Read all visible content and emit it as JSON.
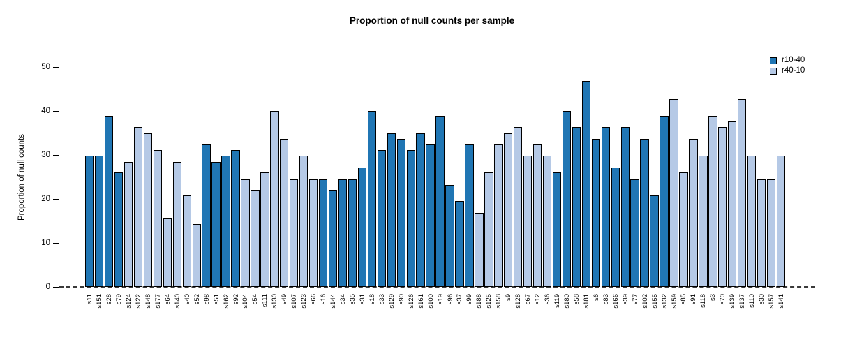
{
  "title": "Proportion of null counts per sample",
  "y_axis_label": "Proportion of null counts",
  "legend": {
    "position": "top-right",
    "items": [
      {
        "label": "r10-40",
        "color": "#2076b4"
      },
      {
        "label": "r40-10",
        "color": "#b5c9e6"
      }
    ]
  },
  "chart_data": {
    "type": "bar",
    "title": "Proportion of null counts per sample",
    "xlabel": "",
    "ylabel": "Proportion of null counts",
    "ylim": [
      0,
      50
    ],
    "yticks": [
      0,
      10,
      20,
      30,
      40,
      50
    ],
    "grid": false,
    "legend_position": "top-right",
    "baseline_style": "dashed-line-at-zero",
    "series": [
      {
        "name": "r10-40",
        "color": "#2076b4"
      },
      {
        "name": "r40-10",
        "color": "#b5c9e6"
      }
    ],
    "categories": [
      "s11",
      "s151",
      "s28",
      "s79",
      "s124",
      "s122",
      "s148",
      "s177",
      "s64",
      "s140",
      "s40",
      "s52",
      "s98",
      "s51",
      "s162",
      "s92",
      "s104",
      "s54",
      "s111",
      "s130",
      "s49",
      "s107",
      "s123",
      "s66",
      "s16",
      "s144",
      "s34",
      "s35",
      "s31",
      "s18",
      "s33",
      "s129",
      "s90",
      "s126",
      "s161",
      "s100",
      "s19",
      "s96",
      "s37",
      "s99",
      "s188",
      "s125",
      "s158",
      "s9",
      "s128",
      "s67",
      "s12",
      "s36",
      "s119",
      "s180",
      "s58",
      "s181",
      "s6",
      "s83",
      "s166",
      "s39",
      "s77",
      "s102",
      "s155",
      "s132",
      "s159",
      "s85",
      "s91",
      "s118",
      "s3",
      "s70",
      "s139",
      "s137",
      "s110",
      "s30",
      "s157",
      "s141"
    ],
    "groups": [
      "r10-40",
      "r10-40",
      "r10-40",
      "r10-40",
      "r40-10",
      "r40-10",
      "r40-10",
      "r40-10",
      "r40-10",
      "r40-10",
      "r40-10",
      "r40-10",
      "r10-40",
      "r10-40",
      "r10-40",
      "r10-40",
      "r40-10",
      "r40-10",
      "r40-10",
      "r40-10",
      "r40-10",
      "r40-10",
      "r40-10",
      "r40-10",
      "r10-40",
      "r10-40",
      "r10-40",
      "r10-40",
      "r10-40",
      "r10-40",
      "r10-40",
      "r10-40",
      "r10-40",
      "r10-40",
      "r10-40",
      "r10-40",
      "r10-40",
      "r10-40",
      "r10-40",
      "r10-40",
      "r40-10",
      "r40-10",
      "r40-10",
      "r40-10",
      "r40-10",
      "r40-10",
      "r40-10",
      "r40-10",
      "r10-40",
      "r10-40",
      "r10-40",
      "r10-40",
      "r10-40",
      "r10-40",
      "r10-40",
      "r10-40",
      "r10-40",
      "r10-40",
      "r10-40",
      "r10-40",
      "r40-10",
      "r40-10",
      "r40-10",
      "r40-10",
      "r40-10",
      "r40-10",
      "r40-10",
      "r40-10",
      "r40-10",
      "r40-10",
      "r40-10",
      "r40-10"
    ],
    "values": [
      29.9,
      29.9,
      39.0,
      26.1,
      28.6,
      36.5,
      35.1,
      31.3,
      15.7,
      28.6,
      20.9,
      14.4,
      32.5,
      28.6,
      29.9,
      31.3,
      24.6,
      22.1,
      26.1,
      40.2,
      33.8,
      24.6,
      29.9,
      24.6,
      24.6,
      22.1,
      24.6,
      24.6,
      27.3,
      40.2,
      31.3,
      35.1,
      33.8,
      31.3,
      35.1,
      32.5,
      39.0,
      23.3,
      19.6,
      32.5,
      16.9,
      26.1,
      32.5,
      35.1,
      36.5,
      29.9,
      32.5,
      29.9,
      26.1,
      40.2,
      36.5,
      46.9,
      33.8,
      36.5,
      27.3,
      36.5,
      24.6,
      33.8,
      20.9,
      39.0,
      42.9,
      26.1,
      33.8,
      29.9,
      39.0,
      36.5,
      37.7,
      42.9,
      29.9,
      24.6,
      24.6,
      29.9
    ]
  }
}
